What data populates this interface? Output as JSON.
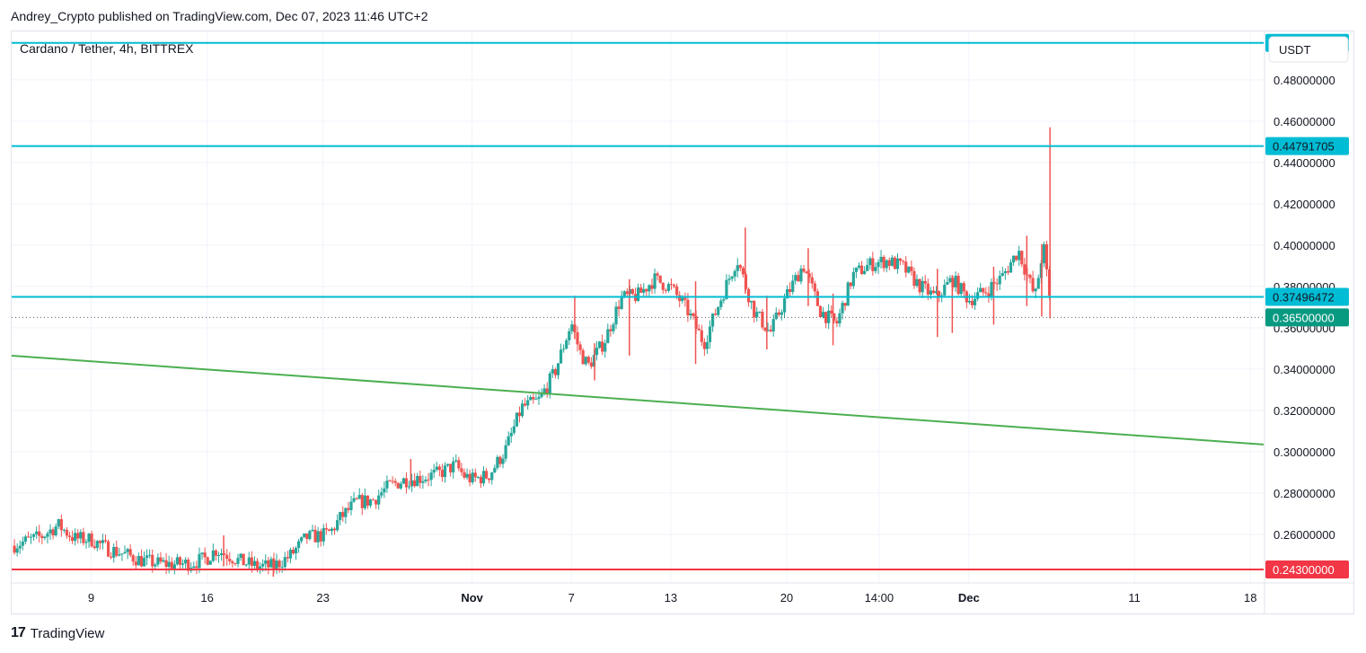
{
  "header": {
    "published": "Andrey_Crypto published on TradingView.com, Dec 07, 2023 11:46 UTC+2"
  },
  "footer": {
    "brand": "TradingView",
    "logo_glyph": "17"
  },
  "colors": {
    "up": "#26a69a",
    "down": "#ef5350",
    "hline": "#00bcd4",
    "trend": "#4caf50",
    "support": "#f23645",
    "last_price": "#089981",
    "grid": "#f0f3fa",
    "text": "#131722"
  },
  "chart_data": {
    "type": "candlestick",
    "symbol": "Cardano / Tether, 4h, BITTREX",
    "currency": "USDT",
    "ylim": [
      0.2365,
      0.5034
    ],
    "y_ticks": [
      "0.48000000",
      "0.46000000",
      "0.44000000",
      "0.42000000",
      "0.40000000",
      "0.38000000",
      "0.36000000",
      "0.34000000",
      "0.32000000",
      "0.30000000",
      "0.28000000",
      "0.26000000"
    ],
    "x_ticks": [
      {
        "label": "9",
        "day": 9,
        "bold": false
      },
      {
        "label": "16",
        "day": 16,
        "bold": false
      },
      {
        "label": "23",
        "day": 23,
        "bold": false
      },
      {
        "label": "Nov",
        "day": 32,
        "bold": true
      },
      {
        "label": "7",
        "day": 38,
        "bold": false
      },
      {
        "label": "13",
        "day": 44,
        "bold": false
      },
      {
        "label": "20",
        "day": 51,
        "bold": false
      },
      {
        "label": "14:00",
        "day": 56.58,
        "bold": false
      },
      {
        "label": "Dec",
        "day": 62,
        "bold": true
      },
      {
        "label": "11",
        "day": 72,
        "bold": false
      },
      {
        "label": "18",
        "day": 79,
        "bold": false
      }
    ],
    "x_range_days": [
      4.2,
      79.8
    ],
    "horizontal_lines": [
      {
        "label": "0.49785891",
        "value": 0.49785891,
        "kind": "resistance"
      },
      {
        "label": "0.44791705",
        "value": 0.44791705,
        "kind": "resistance"
      },
      {
        "label": "0.37496472",
        "value": 0.37496472,
        "kind": "resistance"
      },
      {
        "label": "0.24300000",
        "value": 0.243,
        "kind": "support"
      }
    ],
    "last_price": {
      "label": "0.36500000",
      "value": 0.365
    },
    "trendline": {
      "start": {
        "day": 4.2,
        "value": 0.3465
      },
      "end": {
        "day": 79.8,
        "value": 0.3035
      }
    },
    "price_path": [
      [
        4.2,
        0.2545
      ],
      [
        6,
        0.259
      ],
      [
        7,
        0.2645
      ],
      [
        8,
        0.258
      ],
      [
        9,
        0.2575
      ],
      [
        10,
        0.253
      ],
      [
        11,
        0.2505
      ],
      [
        12,
        0.2475
      ],
      [
        13,
        0.246
      ],
      [
        14,
        0.2455
      ],
      [
        15,
        0.246
      ],
      [
        16,
        0.2485
      ],
      [
        16.5,
        0.2525
      ],
      [
        17,
        0.251
      ],
      [
        18,
        0.247
      ],
      [
        19,
        0.2445
      ],
      [
        20,
        0.2445
      ],
      [
        21,
        0.2495
      ],
      [
        22,
        0.2585
      ],
      [
        23,
        0.2595
      ],
      [
        23.5,
        0.2615
      ],
      [
        24,
        0.2675
      ],
      [
        25,
        0.2755
      ],
      [
        26,
        0.2765
      ],
      [
        27,
        0.2835
      ],
      [
        28,
        0.2865
      ],
      [
        29,
        0.2875
      ],
      [
        30,
        0.2895
      ],
      [
        31,
        0.2935
      ],
      [
        31.5,
        0.2885
      ],
      [
        32,
        0.2865
      ],
      [
        33,
        0.2885
      ],
      [
        34,
        0.3005
      ],
      [
        35,
        0.3215
      ],
      [
        36,
        0.3245
      ],
      [
        37,
        0.3385
      ],
      [
        38,
        0.3625
      ],
      [
        38.5,
        0.3485
      ],
      [
        39,
        0.3415
      ],
      [
        40,
        0.3535
      ],
      [
        41,
        0.3745
      ],
      [
        42,
        0.3755
      ],
      [
        43,
        0.3835
      ],
      [
        44,
        0.3795
      ],
      [
        45,
        0.3685
      ],
      [
        46,
        0.3525
      ],
      [
        47,
        0.3735
      ],
      [
        48,
        0.3935
      ],
      [
        49,
        0.3685
      ],
      [
        50,
        0.3575
      ],
      [
        51,
        0.3755
      ],
      [
        52,
        0.3905
      ],
      [
        53,
        0.3685
      ],
      [
        54,
        0.3615
      ],
      [
        55,
        0.3855
      ],
      [
        56,
        0.3905
      ],
      [
        57,
        0.3925
      ],
      [
        58,
        0.3895
      ],
      [
        59,
        0.3805
      ],
      [
        60,
        0.3745
      ],
      [
        61,
        0.3835
      ],
      [
        62,
        0.3735
      ],
      [
        63,
        0.3775
      ],
      [
        64,
        0.3845
      ],
      [
        65,
        0.3975
      ],
      [
        66,
        0.3745
      ],
      [
        66.5,
        0.4
      ],
      [
        67,
        0.365
      ]
    ],
    "wicks": [
      {
        "day": 17.0,
        "high": 0.2595,
        "low": 0.2445
      },
      {
        "day": 20.0,
        "high": 0.2485,
        "low": 0.2395
      },
      {
        "day": 28.3,
        "high": 0.2965,
        "low": 0.2835
      },
      {
        "day": 38.2,
        "high": 0.3755,
        "low": 0.3545
      },
      {
        "day": 39.4,
        "high": 0.3525,
        "low": 0.3345
      },
      {
        "day": 41.5,
        "high": 0.3835,
        "low": 0.3465
      },
      {
        "day": 45.5,
        "high": 0.3825,
        "low": 0.3425
      },
      {
        "day": 48.5,
        "high": 0.4085,
        "low": 0.3765
      },
      {
        "day": 49.8,
        "high": 0.3755,
        "low": 0.3495
      },
      {
        "day": 52.3,
        "high": 0.3985,
        "low": 0.3705
      },
      {
        "day": 53.8,
        "high": 0.3765,
        "low": 0.3515
      },
      {
        "day": 60.1,
        "high": 0.3885,
        "low": 0.3555
      },
      {
        "day": 61.0,
        "high": 0.3855,
        "low": 0.3575
      },
      {
        "day": 63.5,
        "high": 0.3895,
        "low": 0.3615
      },
      {
        "day": 65.5,
        "high": 0.4045,
        "low": 0.3705
      },
      {
        "day": 66.4,
        "high": 0.4005,
        "low": 0.3655
      },
      {
        "day": 66.9,
        "high": 0.457,
        "low": 0.3645
      }
    ]
  }
}
